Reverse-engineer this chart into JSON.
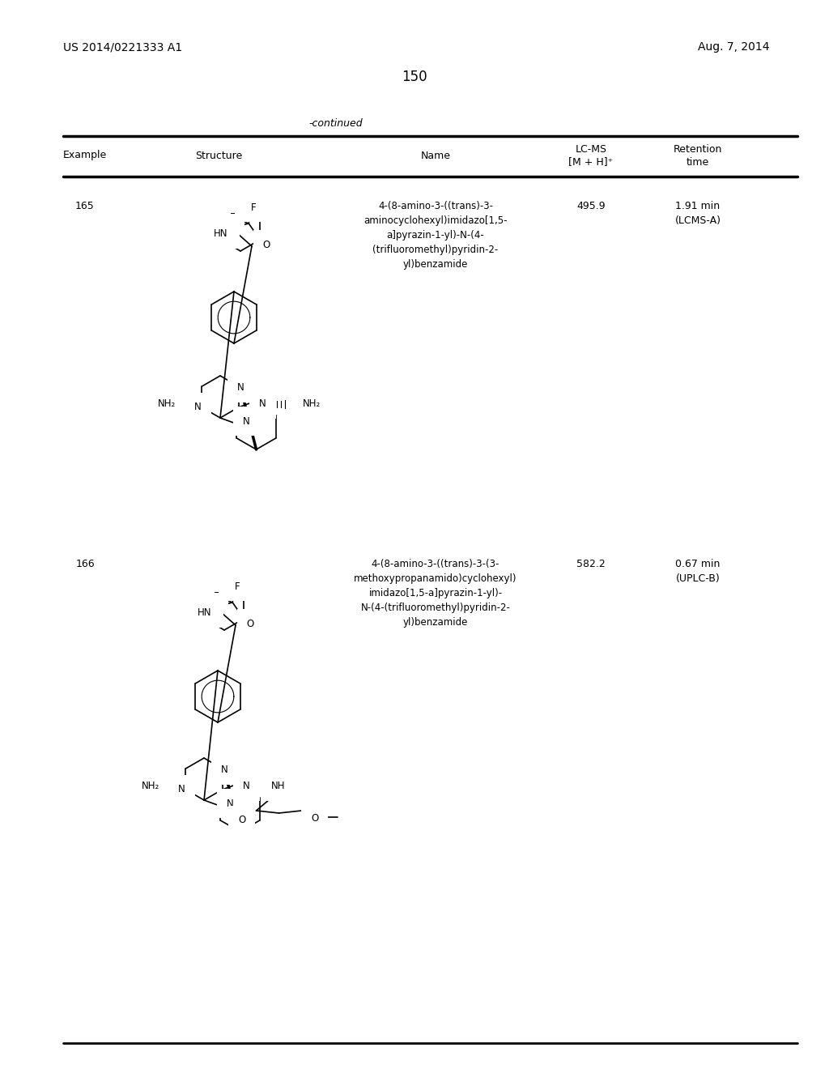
{
  "bg_color": "#ffffff",
  "header_left": "US 2014/0221333 A1",
  "header_right": "Aug. 7, 2014",
  "page_number": "150",
  "continued_text": "-continued",
  "row1_example": "165",
  "row1_name": "4-(8-amino-3-((trans)-3-\naminocyclohexyl)imidazo[1,5-\na]pyrazin-1-yl)-N-(4-\n(trifluoromethyl)pyridin-2-\nyl)benzamide",
  "row1_lcms": "495.9",
  "row1_retention": "1.91 min\n(LCMS-A)",
  "row2_example": "166",
  "row2_name": "4-(8-amino-3-((trans)-3-(3-\nmethoxypropanamido)cyclohexyl)\nimidazo[1,5-a]pyrazin-1-yl)-\nN-(4-(trifluoromethyl)pyridin-2-\nyl)benzamide",
  "row2_lcms": "582.2",
  "row2_retention": "0.67 min\n(UPLC-B)"
}
